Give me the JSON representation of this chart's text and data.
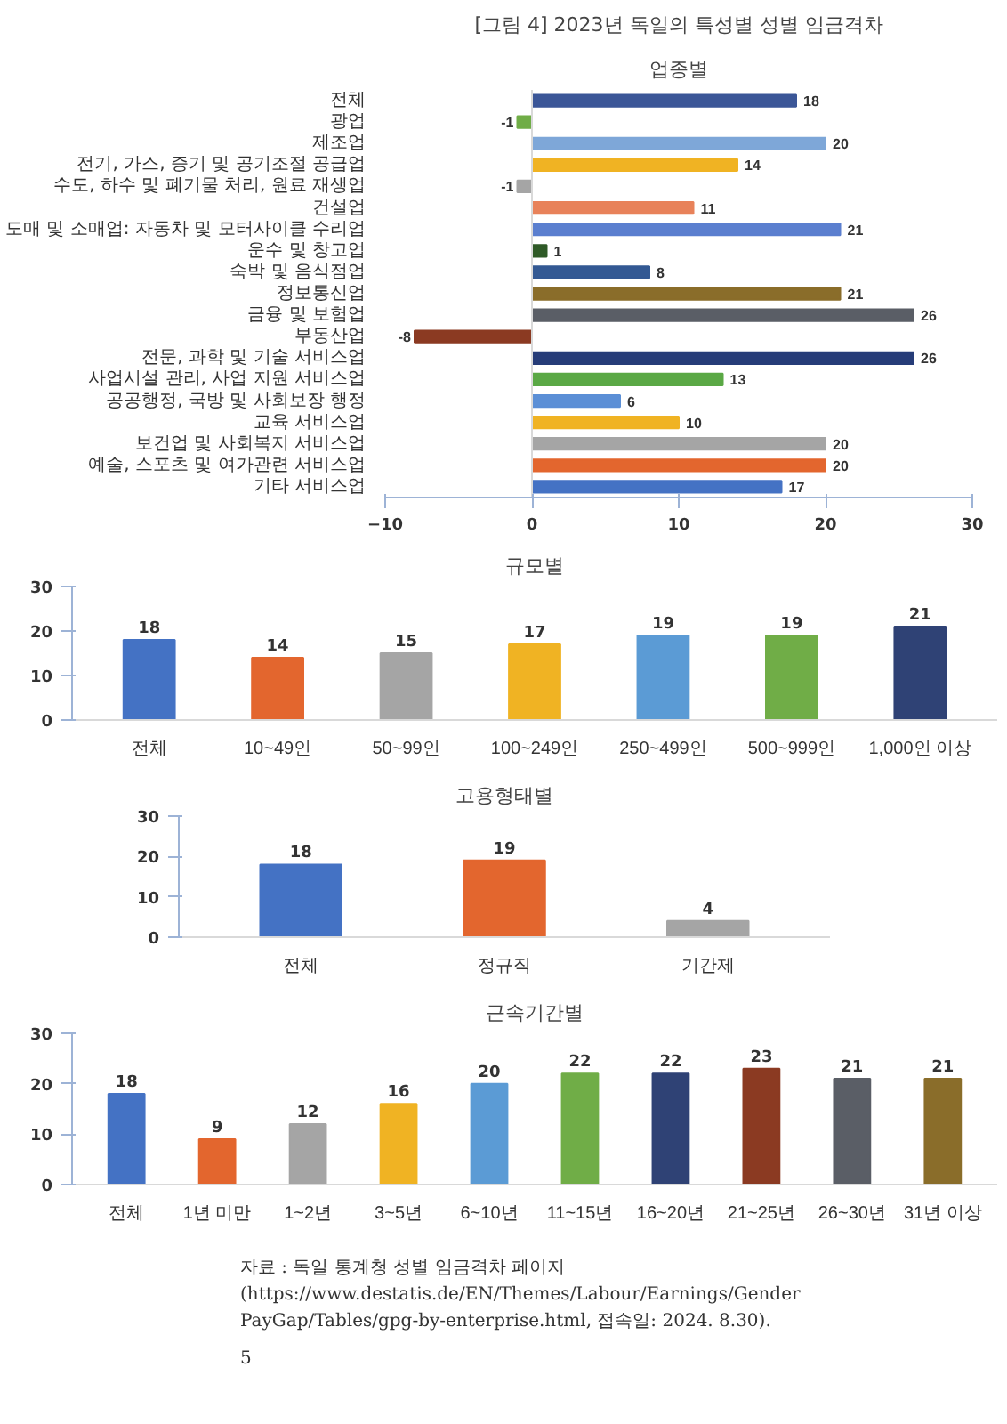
{
  "chart_data": [
    {
      "type": "bar",
      "title": "[그림 4] 2023년 독일의 특성별 성별 임금격차",
      "subtitle": "업종별",
      "orientation": "horizontal",
      "categories": [
        "전체",
        "광업",
        "제조업",
        "전기, 가스, 증기 및 공기조절 공급업",
        "수도, 하수 및 폐기물 처리, 원료 재생업",
        "건설업",
        "도매 및 소매업: 자동차 및 모터사이클 수리업",
        "운수 및 창고업",
        "숙박 및 음식점업",
        "정보통신업",
        "금융 및 보험업",
        "부동산업",
        "전문, 과학 및 기술 서비스업",
        "사업시설 관리, 사업 지원 서비스업",
        "공공행정, 국방 및 사회보장 행정",
        "교육 서비스업",
        "보건업 및 사회복지 서비스업",
        "예술, 스포츠 및 여가관련 서비스업",
        "기타 서비스업"
      ],
      "values": [
        18,
        -1,
        20,
        14,
        -1,
        11,
        21,
        1,
        8,
        21,
        26,
        -8,
        26,
        13,
        6,
        10,
        20,
        20,
        17
      ],
      "colors": [
        "#3b5697",
        "#70ad47",
        "#7ea7d8",
        "#f0b323",
        "#a5a5a5",
        "#e8825a",
        "#5b7fcf",
        "#2f5a27",
        "#335993",
        "#8a6d2a",
        "#5a5e66",
        "#8b3a22",
        "#263c78",
        "#5aa845",
        "#5b8fd6",
        "#f0b323",
        "#a5a5a5",
        "#e3662e",
        "#4472c4"
      ],
      "xlim": [
        -10,
        30
      ],
      "xticks": [
        -10,
        0,
        10,
        20,
        30
      ],
      "data_labels": true
    },
    {
      "type": "bar",
      "title": "규모별",
      "categories": [
        "전체",
        "10~49인",
        "50~99인",
        "100~249인",
        "250~499인",
        "500~999인",
        "1,000인 이상"
      ],
      "values": [
        18,
        14,
        15,
        17,
        19,
        19,
        21
      ],
      "colors": [
        "#4472c4",
        "#e3662e",
        "#a5a5a5",
        "#f0b323",
        "#5b9bd5",
        "#70ad47",
        "#2f4275"
      ],
      "ylim": [
        0,
        30
      ],
      "yticks": [
        0,
        10,
        20,
        30
      ],
      "data_labels": true
    },
    {
      "type": "bar",
      "title": "고용형태별",
      "categories": [
        "전체",
        "정규직",
        "기간제"
      ],
      "values": [
        18,
        19,
        4
      ],
      "colors": [
        "#4472c4",
        "#e3662e",
        "#a5a5a5"
      ],
      "ylim": [
        0,
        30
      ],
      "yticks": [
        0,
        10,
        20,
        30
      ],
      "data_labels": true
    },
    {
      "type": "bar",
      "title": "근속기간별",
      "categories": [
        "전체",
        "1년 미만",
        "1~2년",
        "3~5년",
        "6~10년",
        "11~15년",
        "16~20년",
        "21~25년",
        "26~30년",
        "31년 이상"
      ],
      "values": [
        18,
        9,
        12,
        16,
        20,
        22,
        22,
        23,
        21,
        21
      ],
      "colors": [
        "#4472c4",
        "#e3662e",
        "#a5a5a5",
        "#f0b323",
        "#5b9bd5",
        "#70ad47",
        "#2f4275",
        "#8b3a22",
        "#5a5e66",
        "#8a6d2a"
      ],
      "ylim": [
        0,
        30
      ],
      "yticks": [
        0,
        10,
        20,
        30
      ],
      "data_labels": true,
      "annotations": [
        "자료 : 독일 통계청 성별 임금격차 페이지(https://www.destatis.de/EN/Themes/Labour/Earnings/Gender PayGap/Tables/gpg-by-enterprise.html, 접속일: 2024. 8.30).",
        "5"
      ]
    }
  ]
}
